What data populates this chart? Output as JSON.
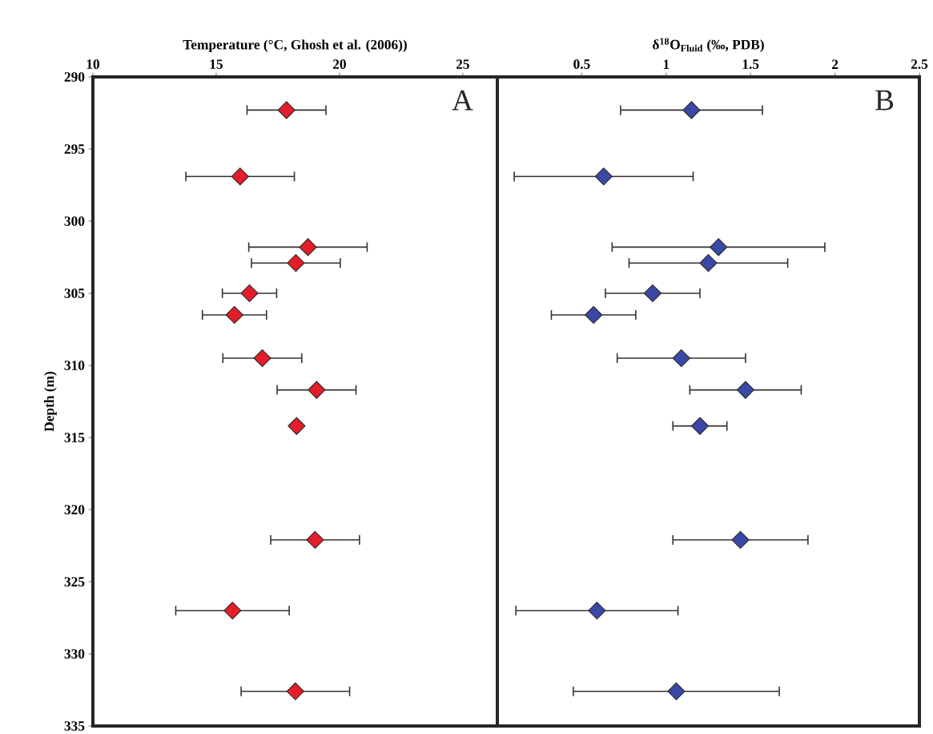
{
  "chart_data": [
    {
      "type": "scatter",
      "xlabel": "Temperature (°C, Ghosh et al. (2006))",
      "ylabel": "Depth (m)",
      "annotations": [
        "A"
      ],
      "marker": "diamond",
      "series": [
        {
          "color": "#e31e2a",
          "x": [
            17.85,
            15.97,
            18.72,
            18.23,
            16.35,
            15.74,
            16.87,
            19.07,
            18.26,
            19.01,
            15.66,
            18.21
          ],
          "values": [
            292.3,
            296.9,
            301.8,
            302.9,
            305.0,
            306.5,
            309.5,
            311.7,
            314.2,
            322.1,
            327.0,
            332.6
          ],
          "xerrors": [
            1.6,
            2.2,
            2.4,
            1.8,
            1.1,
            1.3,
            1.6,
            1.6,
            null,
            1.8,
            2.3,
            2.2
          ]
        }
      ],
      "xlim": [
        10,
        26.4
      ],
      "xticks": [
        10,
        15,
        20,
        25
      ],
      "ylim": [
        335,
        290
      ],
      "yticks": [
        290,
        295,
        300,
        305,
        310,
        315,
        320,
        325,
        330,
        335
      ]
    },
    {
      "type": "scatter",
      "xlabel": "δ$^{18}$O$_{Fluid}$ (‰, PDB)",
      "annotations": [
        "B"
      ],
      "marker": "diamond",
      "tick_labels": "x",
      "series": [
        {
          "color": "#3a48a6",
          "x": [
            1.15,
            0.63,
            1.31,
            1.25,
            0.92,
            0.57,
            1.09,
            1.47,
            1.2,
            1.44,
            0.59,
            1.06
          ],
          "values": [
            292.3,
            296.9,
            301.8,
            302.9,
            305.0,
            306.5,
            309.5,
            311.7,
            314.2,
            322.1,
            327.0,
            332.6
          ],
          "xerrors": [
            0.42,
            0.53,
            0.63,
            0.47,
            0.28,
            0.25,
            0.38,
            0.33,
            0.16,
            0.4,
            0.48,
            0.61
          ]
        }
      ],
      "xlim": [
        0,
        2.5
      ],
      "xticks": [
        0.5,
        1,
        1.5,
        2,
        2.5
      ],
      "ylim": [
        335,
        290
      ],
      "yticks": [
        290,
        295,
        300,
        305,
        310,
        315,
        320,
        325,
        330,
        335
      ]
    }
  ]
}
